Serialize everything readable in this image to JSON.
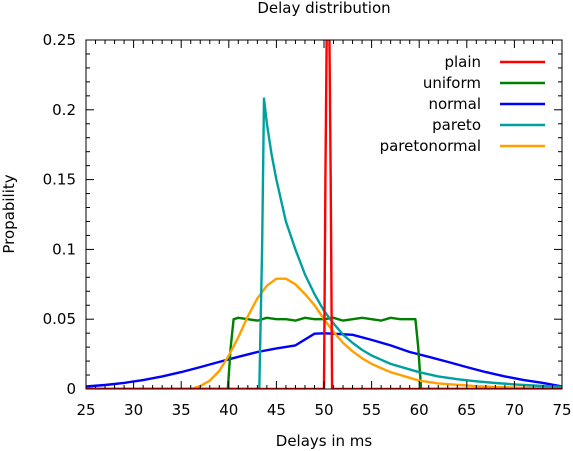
{
  "chart_data": {
    "type": "line",
    "title": "Delay distribution",
    "xlabel": "Delays in ms",
    "ylabel": "Propability",
    "xlim": [
      25,
      75
    ],
    "ylim": [
      0,
      0.25
    ],
    "xticks": [
      25,
      30,
      35,
      40,
      45,
      50,
      55,
      60,
      65,
      70,
      75
    ],
    "xtick_labels": [
      "25",
      "30",
      "35",
      "40",
      "45",
      "50",
      "55",
      "60",
      "65",
      "70",
      "75"
    ],
    "yticks": [
      0,
      0.05,
      0.1,
      0.15,
      0.2,
      0.25
    ],
    "ytick_labels": [
      "0",
      "0.05",
      "0.1",
      "0.15",
      "0.2",
      "0.25"
    ],
    "grid": false,
    "legend": "top-right",
    "series": [
      {
        "name": "plain",
        "color": "#ff0000",
        "x": [
          25,
          50.0,
          50.15,
          50.3,
          50.55,
          50.7,
          50.85,
          75
        ],
        "y": [
          0,
          0,
          0.15,
          0.27,
          0.27,
          0.15,
          0,
          0
        ]
      },
      {
        "name": "uniform",
        "color": "#008000",
        "x": [
          25,
          39.9,
          40.2,
          40.5,
          41,
          42,
          43,
          44,
          45,
          46,
          47,
          48,
          49,
          50,
          51,
          52,
          53,
          54,
          55,
          56,
          57,
          58,
          59,
          59.6,
          59.9,
          60.2,
          75
        ],
        "y": [
          0,
          0,
          0.03,
          0.05,
          0.051,
          0.05,
          0.049,
          0.051,
          0.05,
          0.05,
          0.049,
          0.051,
          0.05,
          0.05,
          0.051,
          0.049,
          0.05,
          0.051,
          0.05,
          0.049,
          0.051,
          0.05,
          0.05,
          0.05,
          0.03,
          0,
          0
        ]
      },
      {
        "name": "normal",
        "color": "#0000ff",
        "x": [
          25,
          27,
          29,
          31,
          33,
          35,
          37,
          39,
          41,
          43,
          45,
          47,
          49,
          50,
          51,
          53,
          55,
          57,
          59,
          61,
          63,
          65,
          67,
          69,
          71,
          73,
          75
        ],
        "y": [
          0.0018,
          0.0029,
          0.0044,
          0.0064,
          0.009,
          0.0121,
          0.0157,
          0.0194,
          0.0231,
          0.0265,
          0.0291,
          0.0312,
          0.0396,
          0.0399,
          0.0396,
          0.0388,
          0.0352,
          0.0312,
          0.0265,
          0.0231,
          0.0194,
          0.0157,
          0.0121,
          0.009,
          0.0064,
          0.0044,
          0.0018
        ]
      },
      {
        "name": "pareto",
        "color": "#00a0a0",
        "x": [
          25,
          43.2,
          43.5,
          43.7,
          44,
          44.5,
          45,
          46,
          47,
          48,
          49,
          50,
          51,
          52,
          53,
          54,
          55,
          56,
          57,
          58,
          60,
          62,
          64,
          66,
          68,
          70,
          72,
          75
        ],
        "y": [
          0,
          0,
          0.1,
          0.208,
          0.19,
          0.168,
          0.15,
          0.12,
          0.1,
          0.082,
          0.068,
          0.056,
          0.047,
          0.039,
          0.033,
          0.028,
          0.024,
          0.021,
          0.018,
          0.016,
          0.012,
          0.009,
          0.007,
          0.0055,
          0.0043,
          0.0033,
          0.0025,
          0.0015
        ]
      },
      {
        "name": "paretonormal",
        "color": "#ffa000",
        "x": [
          25,
          36,
          37,
          38,
          39,
          40,
          41,
          42,
          43,
          44,
          45,
          46,
          47,
          48,
          49,
          50,
          51,
          52,
          53,
          54,
          55,
          56,
          57,
          58,
          59,
          60,
          62,
          64,
          66,
          68,
          70,
          72,
          75
        ],
        "y": [
          0,
          0,
          0.002,
          0.006,
          0.013,
          0.024,
          0.037,
          0.052,
          0.065,
          0.074,
          0.079,
          0.079,
          0.075,
          0.068,
          0.06,
          0.05,
          0.041,
          0.033,
          0.027,
          0.022,
          0.018,
          0.015,
          0.012,
          0.01,
          0.008,
          0.006,
          0.004,
          0.003,
          0.002,
          0.0015,
          0.001,
          0.0008,
          0.0005
        ]
      }
    ]
  }
}
